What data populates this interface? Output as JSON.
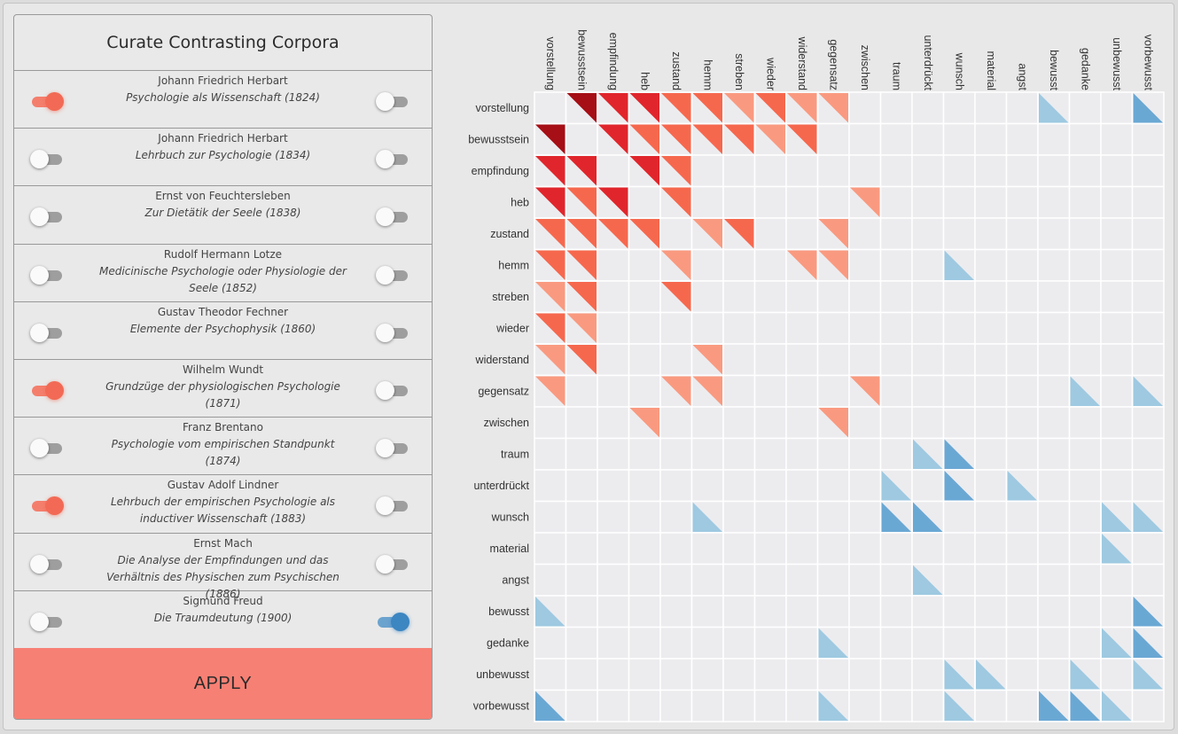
{
  "panel": {
    "title": "Curate Contrasting Corpora",
    "apply_label": "APPLY",
    "corpora": [
      {
        "author": "Johann Friedrich Herbart",
        "title": "Psychologie als Wissenschaft (1824)",
        "left_on": true,
        "right_on": false
      },
      {
        "author": "Johann Friedrich Herbart",
        "title": "Lehrbuch zur Psychologie (1834)",
        "left_on": false,
        "right_on": false
      },
      {
        "author": "Ernst von Feuchtersleben",
        "title": "Zur Dietätik der Seele (1838)",
        "left_on": false,
        "right_on": false
      },
      {
        "author": "Rudolf Hermann Lotze",
        "title": "Medicinische Psychologie oder Physiologie der Seele (1852)",
        "left_on": false,
        "right_on": false
      },
      {
        "author": "Gustav Theodor Fechner",
        "title": "Elemente der Psychophysik (1860)",
        "left_on": false,
        "right_on": false
      },
      {
        "author": "Wilhelm Wundt",
        "title": "Grundzüge der physiologischen Psychologie (1871)",
        "left_on": true,
        "right_on": false
      },
      {
        "author": "Franz Brentano",
        "title": "Psychologie vom empirischen Standpunkt (1874)",
        "left_on": false,
        "right_on": false
      },
      {
        "author": "Gustav Adolf Lindner",
        "title": "Lehrbuch der empirischen Psychologie als inductiver Wissenschaft (1883)",
        "left_on": true,
        "right_on": false
      },
      {
        "author": "Ernst Mach",
        "title": "Die Analyse der Empfindungen und das Verhältnis des Physischen zum Psychischen (1886)",
        "left_on": false,
        "right_on": false
      },
      {
        "author": "Sigmund Freud",
        "title": "Die Traumdeutung (1900)",
        "left_on": false,
        "right_on": true
      }
    ]
  },
  "colors": {
    "left_corpus": "#f26a55",
    "right_corpus": "#3c86c1",
    "apply_bg": "#f78074",
    "cell_bg": "#ececef"
  },
  "chart_data": {
    "type": "heatmap",
    "terms": [
      "vorstellung",
      "bewusstsein",
      "empfindung",
      "heb",
      "zustand",
      "hemm",
      "streben",
      "wieder",
      "widerstand",
      "gegensatz",
      "zwischen",
      "traum",
      "unterdrückt",
      "wunsch",
      "material",
      "angst",
      "bewusst",
      "gedanke",
      "unbewusst",
      "vorbewusst"
    ],
    "scale_levels": {
      "red": [
        "#f99a80",
        "#f6684e",
        "#e0262c",
        "#a50f15"
      ],
      "blue": [
        "#9ec9e1",
        "#6aa8d4"
      ]
    },
    "red_cells": [
      [
        0,
        1,
        4
      ],
      [
        0,
        2,
        3
      ],
      [
        0,
        3,
        3
      ],
      [
        0,
        4,
        2
      ],
      [
        0,
        5,
        2
      ],
      [
        0,
        6,
        1
      ],
      [
        0,
        7,
        2
      ],
      [
        0,
        8,
        1
      ],
      [
        0,
        9,
        1
      ],
      [
        1,
        0,
        4
      ],
      [
        1,
        2,
        3
      ],
      [
        1,
        3,
        2
      ],
      [
        1,
        4,
        2
      ],
      [
        1,
        5,
        2
      ],
      [
        1,
        6,
        2
      ],
      [
        1,
        7,
        1
      ],
      [
        1,
        8,
        2
      ],
      [
        2,
        0,
        3
      ],
      [
        2,
        1,
        3
      ],
      [
        2,
        3,
        3
      ],
      [
        2,
        4,
        2
      ],
      [
        3,
        0,
        3
      ],
      [
        3,
        1,
        2
      ],
      [
        3,
        2,
        3
      ],
      [
        3,
        4,
        2
      ],
      [
        3,
        10,
        1
      ],
      [
        4,
        0,
        2
      ],
      [
        4,
        1,
        2
      ],
      [
        4,
        2,
        2
      ],
      [
        4,
        3,
        2
      ],
      [
        4,
        5,
        1
      ],
      [
        4,
        6,
        2
      ],
      [
        4,
        9,
        1
      ],
      [
        5,
        0,
        2
      ],
      [
        5,
        1,
        2
      ],
      [
        5,
        4,
        1
      ],
      [
        5,
        8,
        1
      ],
      [
        5,
        9,
        1
      ],
      [
        6,
        0,
        1
      ],
      [
        6,
        1,
        2
      ],
      [
        6,
        4,
        2
      ],
      [
        7,
        0,
        2
      ],
      [
        7,
        1,
        1
      ],
      [
        8,
        0,
        1
      ],
      [
        8,
        1,
        2
      ],
      [
        8,
        5,
        1
      ],
      [
        9,
        0,
        1
      ],
      [
        9,
        4,
        1
      ],
      [
        9,
        5,
        1
      ],
      [
        9,
        10,
        1
      ],
      [
        10,
        3,
        1
      ],
      [
        10,
        9,
        1
      ]
    ],
    "blue_cells": [
      [
        0,
        16,
        1
      ],
      [
        0,
        19,
        2
      ],
      [
        5,
        13,
        1
      ],
      [
        9,
        17,
        1
      ],
      [
        9,
        19,
        1
      ],
      [
        11,
        12,
        1
      ],
      [
        11,
        13,
        2
      ],
      [
        12,
        11,
        1
      ],
      [
        12,
        13,
        2
      ],
      [
        12,
        15,
        1
      ],
      [
        13,
        5,
        1
      ],
      [
        13,
        11,
        2
      ],
      [
        13,
        12,
        2
      ],
      [
        13,
        18,
        1
      ],
      [
        13,
        19,
        1
      ],
      [
        14,
        18,
        1
      ],
      [
        15,
        12,
        1
      ],
      [
        16,
        0,
        1
      ],
      [
        16,
        19,
        2
      ],
      [
        17,
        9,
        1
      ],
      [
        17,
        18,
        1
      ],
      [
        17,
        19,
        2
      ],
      [
        18,
        13,
        1
      ],
      [
        18,
        14,
        1
      ],
      [
        18,
        17,
        1
      ],
      [
        18,
        19,
        1
      ],
      [
        19,
        0,
        2
      ],
      [
        19,
        9,
        1
      ],
      [
        19,
        13,
        1
      ],
      [
        19,
        16,
        2
      ],
      [
        19,
        17,
        2
      ],
      [
        19,
        18,
        1
      ]
    ]
  }
}
